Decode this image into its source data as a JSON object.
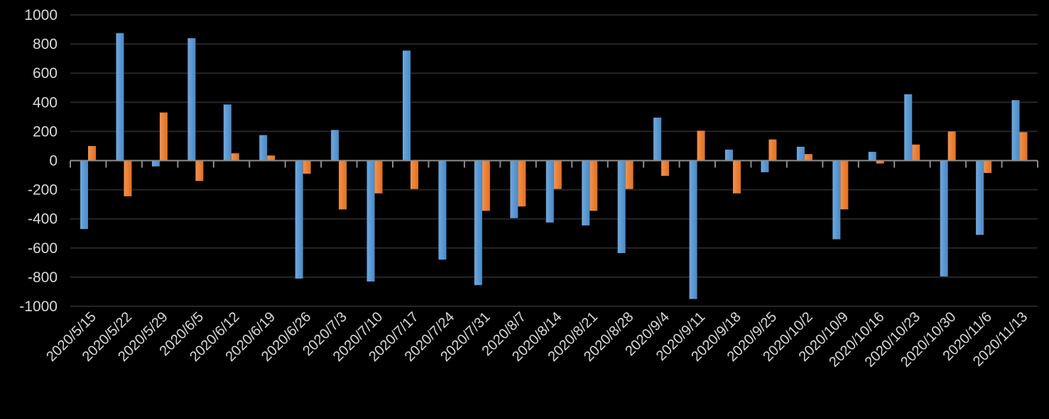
{
  "chart_data": {
    "type": "bar",
    "title": "",
    "xlabel": "",
    "ylabel": "",
    "ylim": [
      -1000,
      1000
    ],
    "yticks": [
      1000,
      800,
      600,
      400,
      200,
      0,
      -200,
      -400,
      -600,
      -800,
      -1000
    ],
    "grid": true,
    "legend": "none",
    "categories": [
      "2020/5/15",
      "2020/5/22",
      "2020/5/29",
      "2020/6/5",
      "2020/6/12",
      "2020/6/19",
      "2020/6/26",
      "2020/7/3",
      "2020/7/10",
      "2020/7/17",
      "2020/7/24",
      "2020/7/31",
      "2020/8/7",
      "2020/8/14",
      "2020/8/21",
      "2020/8/28",
      "2020/9/4",
      "2020/9/11",
      "2020/9/18",
      "2020/9/25",
      "2020/10/2",
      "2020/10/9",
      "2020/10/16",
      "2020/10/23",
      "2020/10/30",
      "2020/11/6",
      "2020/11/13"
    ],
    "series": [
      {
        "color": "#5b9bd5",
        "values": [
          -470,
          875,
          -40,
          840,
          385,
          175,
          -810,
          210,
          -830,
          755,
          -680,
          -855,
          -395,
          -425,
          -445,
          -635,
          295,
          -950,
          75,
          -80,
          95,
          -540,
          60,
          455,
          -795,
          -510,
          415
        ]
      },
      {
        "color": "#ed7d31",
        "values": [
          100,
          -245,
          330,
          -140,
          50,
          35,
          -90,
          -335,
          -225,
          -195,
          0,
          -345,
          -315,
          -195,
          -345,
          -195,
          -105,
          205,
          -225,
          145,
          45,
          -335,
          -20,
          110,
          200,
          -85,
          195
        ]
      }
    ]
  }
}
